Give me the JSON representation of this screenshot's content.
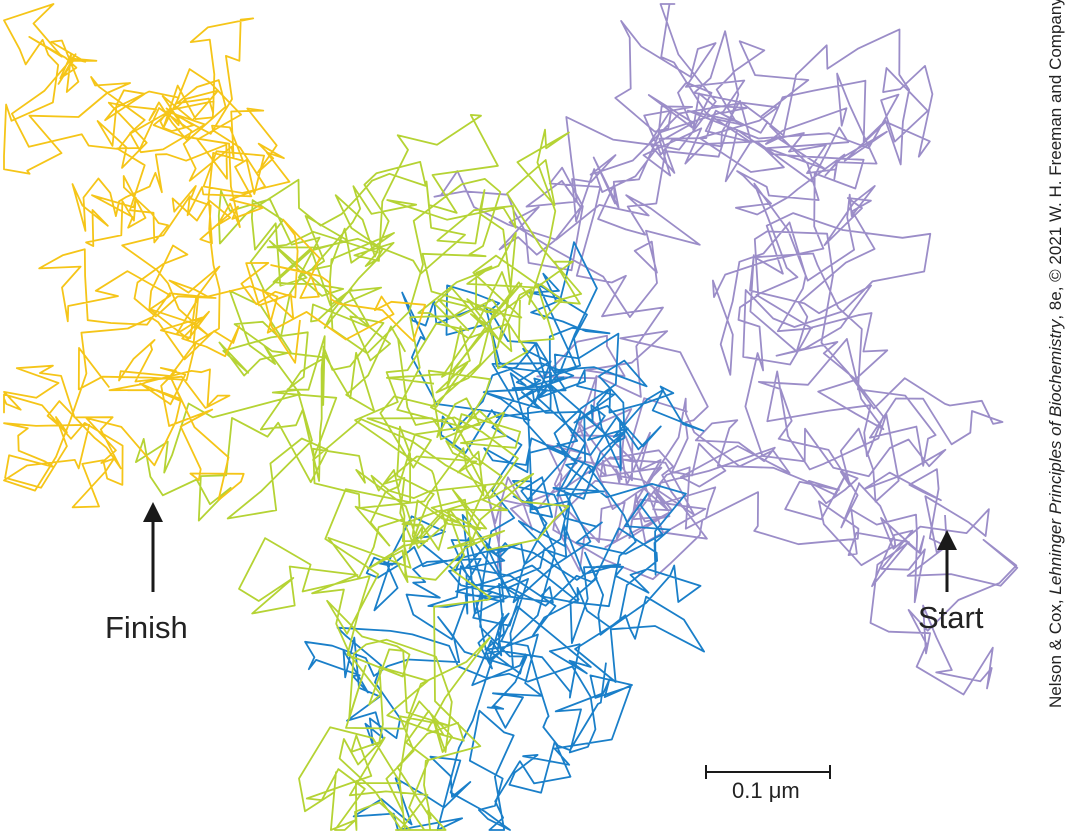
{
  "labels": {
    "finish": "Finish",
    "start": "Start",
    "scale_bar": "0.1 μm"
  },
  "credit": {
    "before": "Nelson & Cox, ",
    "book": "Lehninger Principles of Biochemistry",
    "after": ", 8e, © 2021 W. H. Freeman and Company"
  },
  "colors": {
    "yellow_track": "#F5C518",
    "green_track": "#B5D334",
    "blue_track": "#1A7FC9",
    "purple_track": "#9B8DC8",
    "arrow": "#1a1a1a"
  }
}
